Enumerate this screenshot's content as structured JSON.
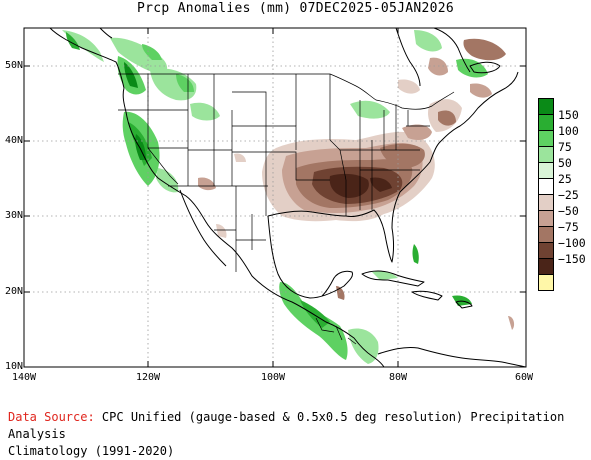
{
  "title": "Prcp Anomalies (mm)  07DEC2025-05JAN2026",
  "map": {
    "lat_labels": [
      "50N",
      "40N",
      "30N",
      "20N",
      "10N"
    ],
    "lon_labels": [
      "140W",
      "120W",
      "100W",
      "80W",
      "60W"
    ],
    "lat_values": [
      50,
      40,
      30,
      20,
      10
    ],
    "lon_values": [
      -140,
      -120,
      -100,
      -80,
      -60
    ]
  },
  "legend": {
    "items": [
      {
        "label": "150",
        "color": "#0a8a17"
      },
      {
        "label": "100",
        "color": "#2aae32"
      },
      {
        "label": "75",
        "color": "#5ed162"
      },
      {
        "label": "50",
        "color": "#9be49c"
      },
      {
        "label": "25",
        "color": "#d9f4d7"
      },
      {
        "label": "−25",
        "color": "#ffffff"
      },
      {
        "label": "−50",
        "color": "#e3cfc6"
      },
      {
        "label": "−75",
        "color": "#c7a193"
      },
      {
        "label": "−100",
        "color": "#a37664"
      },
      {
        "label": "−150",
        "color": "#6f4232"
      },
      {
        "label": "",
        "color": "#4a2418"
      },
      {
        "label": "",
        "color": "#fff7a8"
      }
    ]
  },
  "footer": {
    "source_label": "Data Source:",
    "source_text": " CPC Unified (gauge-based & 0.5x0.5 deg resolution) Precipitation Analysis",
    "climatology": "Climatology (1991-2020)"
  }
}
